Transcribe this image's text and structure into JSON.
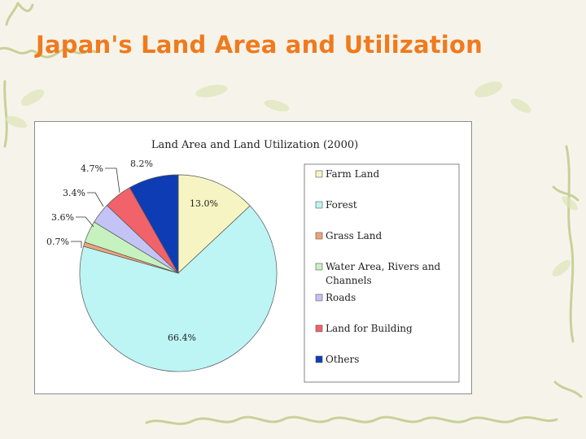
{
  "slide": {
    "title": "Japan's Land Area and Utilization"
  },
  "chart_data": {
    "type": "pie",
    "title": "Land Area and Land Utilization (2000)",
    "legend_position": "right",
    "slices": [
      {
        "name": "Farm Land",
        "value": 13.0,
        "label": "13.0%",
        "color": "#f6f4c2"
      },
      {
        "name": "Forest",
        "value": 66.4,
        "label": "66.4%",
        "color": "#bdf4f4"
      },
      {
        "name": "Grass Land",
        "value": 0.7,
        "label": "0.7%",
        "color": "#f0a37a"
      },
      {
        "name": "Water Area, Rivers and Channels",
        "value": 3.6,
        "label": "3.6%",
        "color": "#c6f2c0"
      },
      {
        "name": "Roads",
        "value": 3.4,
        "label": "3.4%",
        "color": "#c3c3f6"
      },
      {
        "name": "Land for Building",
        "value": 4.7,
        "label": "4.7%",
        "color": "#f2626a"
      },
      {
        "name": "Others",
        "value": 8.2,
        "label": "8.2%",
        "color": "#0e3cb4"
      }
    ]
  }
}
